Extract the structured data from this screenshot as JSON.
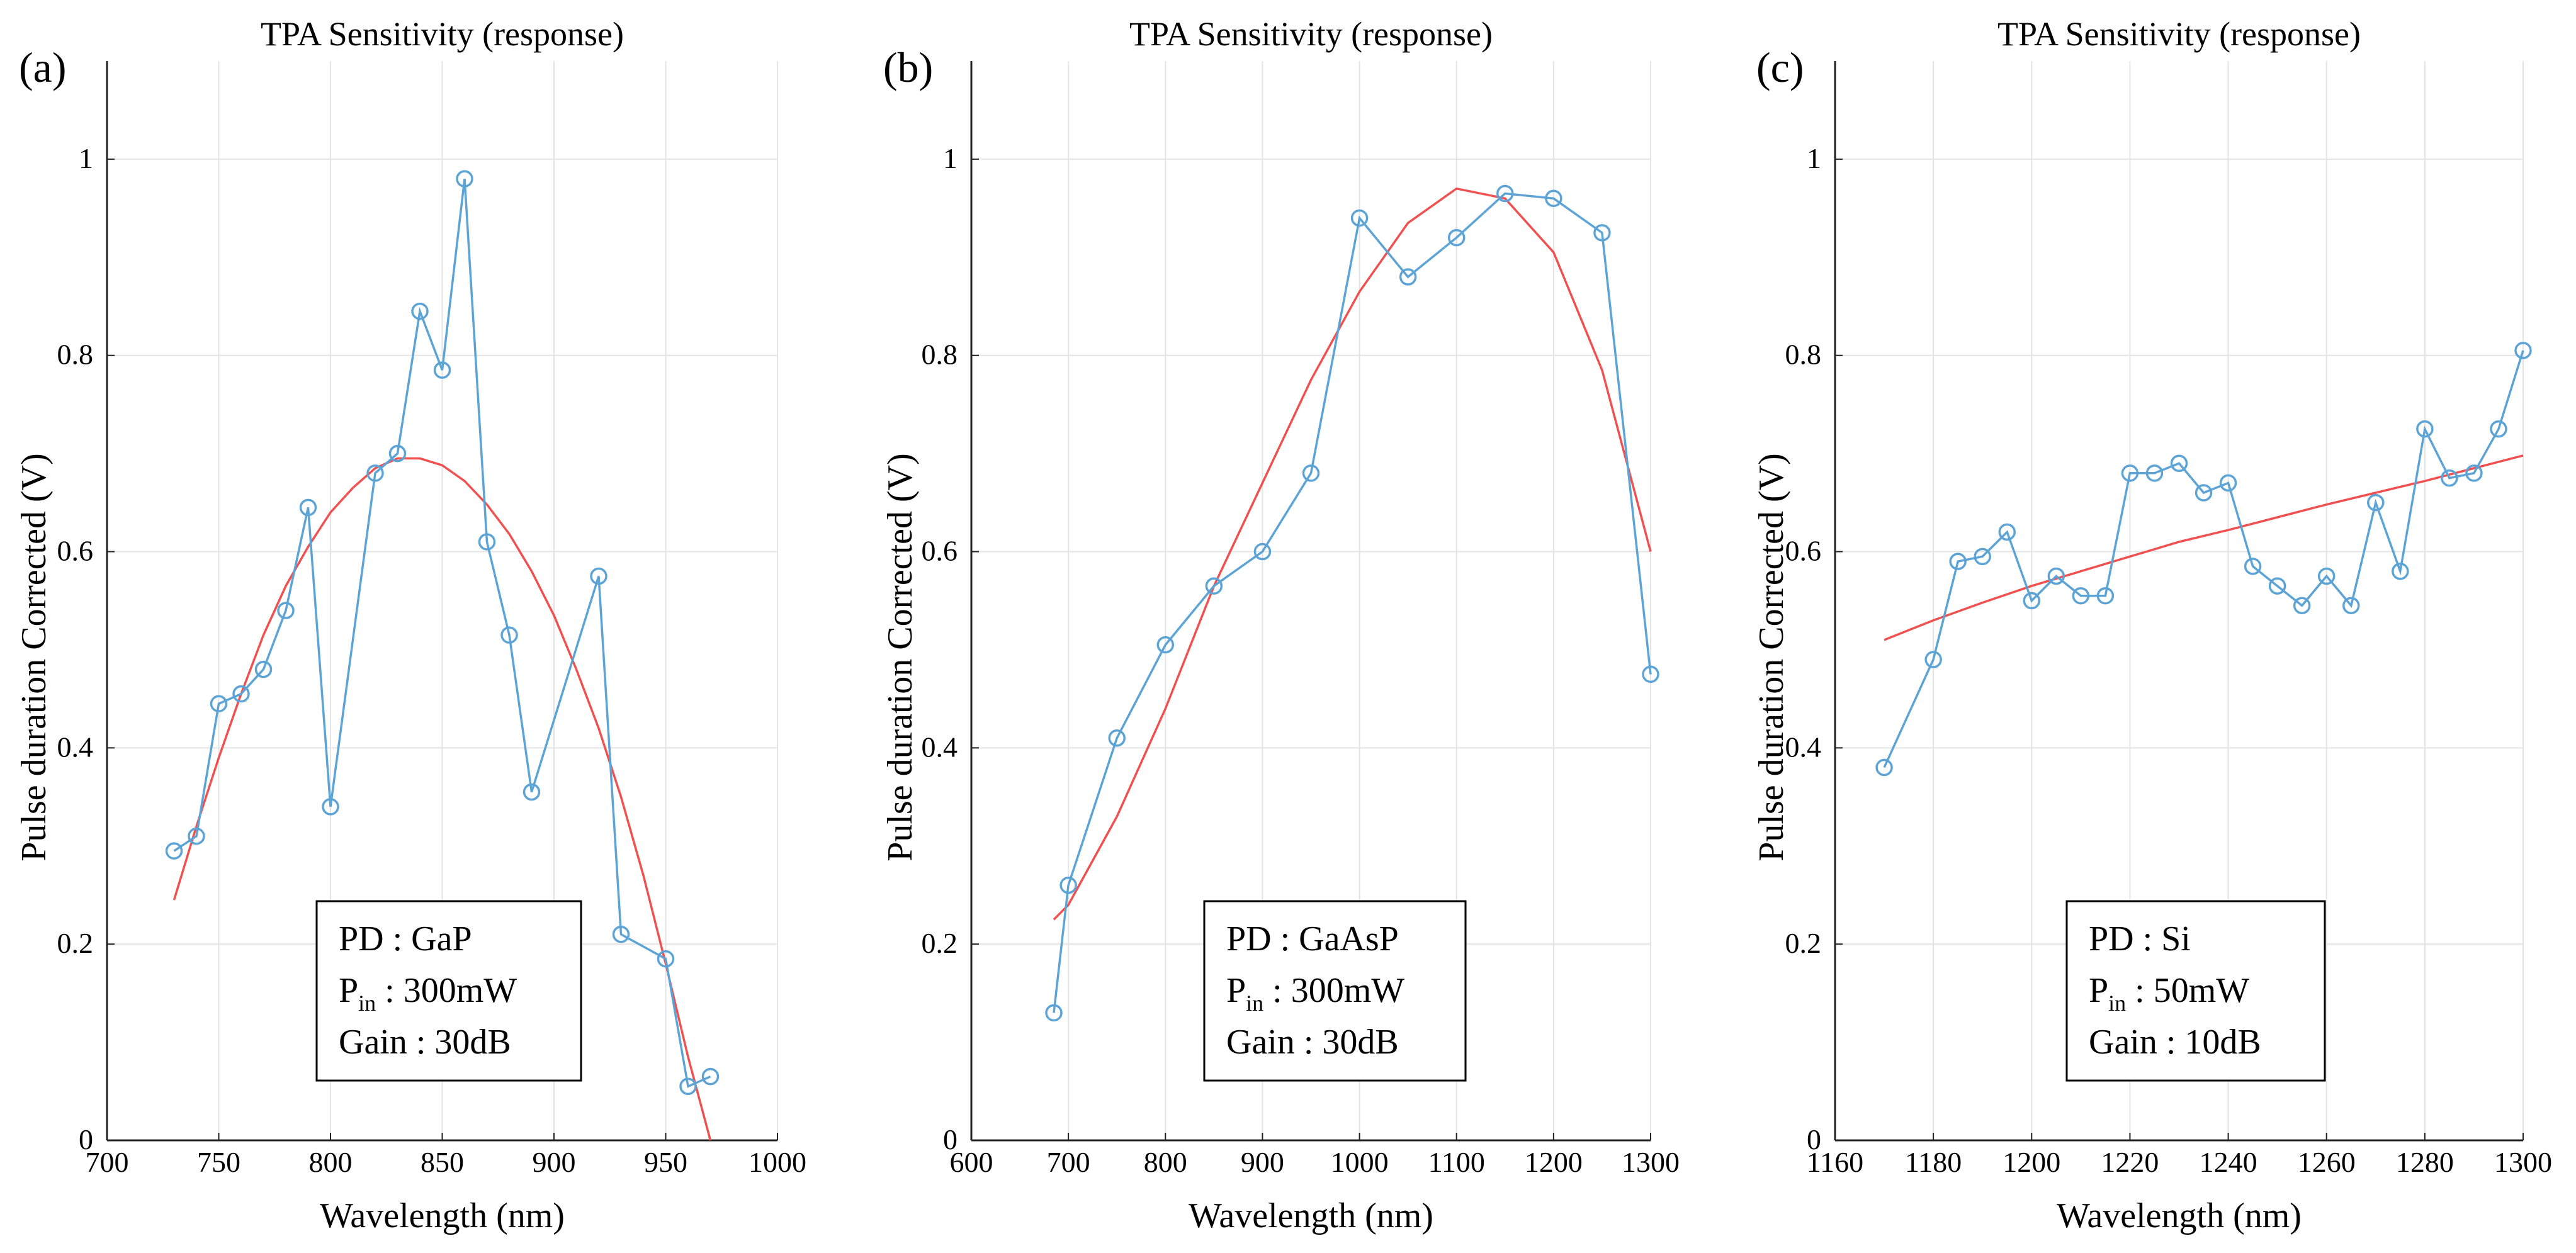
{
  "chart_data": [
    {
      "type": "line",
      "panel_label": "(a)",
      "title": "TPA Sensitivity (response)",
      "xlabel": "Wavelength (nm)",
      "ylabel": "Pulse duration Corrected (V)",
      "xlim": [
        700,
        1000
      ],
      "ylim": [
        0,
        1.1
      ],
      "xticks": [
        700,
        750,
        800,
        850,
        900,
        950,
        1000
      ],
      "yticks": [
        0,
        0.2,
        0.4,
        0.6,
        0.8,
        1
      ],
      "ytick_labels": [
        "0",
        "0.2",
        "0.4",
        "0.6",
        "0.8",
        "1"
      ],
      "grid": true,
      "measured_color": "#5ca3d6",
      "fit_color": "#f05050",
      "info_box": {
        "pd": "PD : GaP",
        "pin_main": "P",
        "pin_sub": "in",
        "pin_value": " : 300mW",
        "gain": "Gain : 30dB"
      },
      "measured": {
        "x": [
          730,
          740,
          750,
          760,
          770,
          780,
          790,
          800,
          820,
          830,
          840,
          850,
          860,
          870,
          880,
          890,
          920,
          930,
          950,
          960,
          970
        ],
        "y": [
          0.295,
          0.31,
          0.445,
          0.455,
          0.48,
          0.54,
          0.645,
          0.34,
          0.68,
          0.7,
          0.845,
          0.785,
          0.98,
          0.61,
          0.515,
          0.355,
          0.575,
          0.21,
          0.185,
          0.055,
          0.065
        ]
      },
      "fit": {
        "x": [
          730,
          740,
          750,
          760,
          770,
          780,
          790,
          800,
          810,
          820,
          830,
          840,
          850,
          860,
          870,
          880,
          890,
          900,
          910,
          920,
          930,
          940,
          950,
          960,
          970
        ],
        "y": [
          0.245,
          0.32,
          0.39,
          0.455,
          0.515,
          0.565,
          0.605,
          0.64,
          0.665,
          0.685,
          0.695,
          0.695,
          0.688,
          0.672,
          0.648,
          0.618,
          0.58,
          0.535,
          0.48,
          0.42,
          0.35,
          0.27,
          0.18,
          0.085,
          0.0
        ]
      }
    },
    {
      "type": "line",
      "panel_label": "(b)",
      "title": "TPA Sensitivity (response)",
      "xlabel": "Wavelength (nm)",
      "ylabel": "Pulse duration Corrected (V)",
      "xlim": [
        600,
        1300
      ],
      "ylim": [
        0,
        1.1
      ],
      "xticks": [
        600,
        700,
        800,
        900,
        1000,
        1100,
        1200,
        1300
      ],
      "yticks": [
        0,
        0.2,
        0.4,
        0.6,
        0.8,
        1
      ],
      "ytick_labels": [
        "0",
        "0.2",
        "0.4",
        "0.6",
        "0.8",
        "1"
      ],
      "grid": true,
      "measured_color": "#5ca3d6",
      "fit_color": "#f05050",
      "info_box": {
        "pd": "PD : GaAsP",
        "pin_main": "P",
        "pin_sub": "in",
        "pin_value": " : 300mW",
        "gain": "Gain : 30dB"
      },
      "measured": {
        "x": [
          685,
          700,
          750,
          800,
          850,
          900,
          950,
          1000,
          1050,
          1100,
          1150,
          1200,
          1250,
          1300
        ],
        "y": [
          0.13,
          0.26,
          0.41,
          0.505,
          0.565,
          0.6,
          0.68,
          0.94,
          0.88,
          0.92,
          0.965,
          0.96,
          0.925,
          0.475
        ]
      },
      "fit": {
        "x": [
          685,
          700,
          750,
          800,
          850,
          900,
          950,
          1000,
          1050,
          1100,
          1150,
          1200,
          1250,
          1300
        ],
        "y": [
          0.225,
          0.24,
          0.33,
          0.44,
          0.565,
          0.67,
          0.775,
          0.865,
          0.935,
          0.97,
          0.96,
          0.905,
          0.785,
          0.6
        ]
      }
    },
    {
      "type": "line",
      "panel_label": "(c)",
      "title": "TPA Sensitivity (response)",
      "xlabel": "Wavelength (nm)",
      "ylabel": "Pulse duration Corrected (V)",
      "xlim": [
        1160,
        1300
      ],
      "ylim": [
        0,
        1.1
      ],
      "xticks": [
        1160,
        1180,
        1200,
        1220,
        1240,
        1260,
        1280,
        1300
      ],
      "yticks": [
        0,
        0.2,
        0.4,
        0.6,
        0.8,
        1
      ],
      "ytick_labels": [
        "0",
        "0.2",
        "0.4",
        "0.6",
        "0.8",
        "1"
      ],
      "grid": true,
      "measured_color": "#5ca3d6",
      "fit_color": "#f05050",
      "info_box": {
        "pd": "PD : Si",
        "pin_main": "P",
        "pin_sub": "in",
        "pin_value": " : 50mW",
        "gain": "Gain : 10dB"
      },
      "measured": {
        "x": [
          1170,
          1180,
          1185,
          1190,
          1195,
          1200,
          1205,
          1210,
          1215,
          1220,
          1225,
          1230,
          1235,
          1240,
          1245,
          1250,
          1255,
          1260,
          1265,
          1270,
          1275,
          1280,
          1285,
          1290,
          1295,
          1300
        ],
        "y": [
          0.38,
          0.49,
          0.59,
          0.595,
          0.62,
          0.55,
          0.575,
          0.555,
          0.555,
          0.68,
          0.68,
          0.69,
          0.66,
          0.67,
          0.585,
          0.565,
          0.545,
          0.575,
          0.545,
          0.65,
          0.58,
          0.725,
          0.675,
          0.68,
          0.725,
          0.805
        ]
      },
      "fit": {
        "x": [
          1170,
          1180,
          1190,
          1200,
          1210,
          1220,
          1230,
          1240,
          1250,
          1260,
          1270,
          1280,
          1290,
          1300
        ],
        "y": [
          0.51,
          0.53,
          0.548,
          0.565,
          0.58,
          0.595,
          0.61,
          0.622,
          0.635,
          0.648,
          0.66,
          0.672,
          0.685,
          0.698
        ]
      }
    }
  ]
}
